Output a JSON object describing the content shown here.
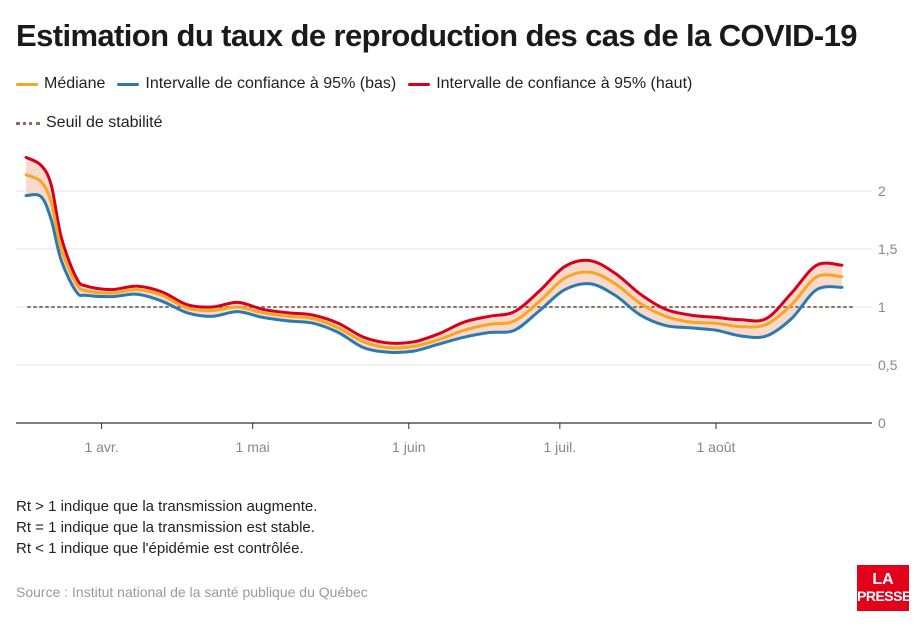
{
  "title": "Estimation du taux de reproduction des cas de la COVID-19",
  "legend": {
    "median": "Médiane",
    "low": "Intervalle de confiance à 95% (bas)",
    "high": "Intervalle de confiance à 95% (haut)",
    "threshold": "Seuil de stabilité"
  },
  "colors": {
    "median": "#f5a623",
    "low": "#2a7ab0",
    "high": "#d6001c",
    "band": "#f9d5c8",
    "threshold": "#8a6f63",
    "axis": "#888888"
  },
  "notes": [
    "Rt > 1 indique que la transmission augmente.",
    "Rt = 1 indique que la transmission est stable.",
    "Rt < 1 indique que l'épidémie est contrôlée."
  ],
  "source": "Source : Institut national de la santé publique du Québec",
  "logo": [
    "LA",
    "PRESSE"
  ],
  "chart_data": {
    "type": "line",
    "x_ticks": [
      {
        "day": 17,
        "label": "1 avr."
      },
      {
        "day": 47,
        "label": "1 mai"
      },
      {
        "day": 78,
        "label": "1 juin"
      },
      {
        "day": 108,
        "label": "1 juil."
      },
      {
        "day": 139,
        "label": "1 août"
      }
    ],
    "y_ticks": [
      {
        "value": 0,
        "label": "0"
      },
      {
        "value": 0.5,
        "label": "0,5"
      },
      {
        "value": 1,
        "label": "1"
      },
      {
        "value": 1.5,
        "label": "1,5"
      },
      {
        "value": 2,
        "label": "2"
      }
    ],
    "xlim": [
      0,
      168
    ],
    "ylim": [
      0,
      2
    ],
    "threshold": 1,
    "series": [
      {
        "name": "Médiane",
        "key": "median",
        "x": [
          2,
          5,
          7,
          9,
          12,
          14,
          19,
          24,
          29,
          34,
          39,
          44,
          49,
          54,
          59,
          64,
          69,
          74,
          79,
          84,
          89,
          94,
          99,
          104,
          109,
          114,
          119,
          124,
          129,
          134,
          139,
          144,
          149,
          154,
          159,
          164
        ],
        "values": [
          2.14,
          2.08,
          1.9,
          1.5,
          1.2,
          1.14,
          1.12,
          1.15,
          1.1,
          0.99,
          0.97,
          1.0,
          0.95,
          0.92,
          0.9,
          0.82,
          0.7,
          0.65,
          0.66,
          0.72,
          0.8,
          0.85,
          0.88,
          1.05,
          1.25,
          1.3,
          1.2,
          1.03,
          0.92,
          0.87,
          0.86,
          0.83,
          0.85,
          1.02,
          1.26,
          1.26
        ]
      },
      {
        "name": "Intervalle de confiance à 95% (bas)",
        "key": "low",
        "x": [
          2,
          5,
          7,
          9,
          12,
          14,
          19,
          24,
          29,
          34,
          39,
          44,
          49,
          54,
          59,
          64,
          69,
          74,
          79,
          84,
          89,
          94,
          99,
          104,
          109,
          114,
          119,
          124,
          129,
          134,
          139,
          144,
          149,
          154,
          159,
          164
        ],
        "values": [
          1.96,
          1.95,
          1.75,
          1.4,
          1.13,
          1.1,
          1.09,
          1.11,
          1.05,
          0.95,
          0.92,
          0.96,
          0.91,
          0.88,
          0.86,
          0.78,
          0.65,
          0.61,
          0.62,
          0.68,
          0.74,
          0.78,
          0.8,
          0.97,
          1.15,
          1.2,
          1.1,
          0.93,
          0.84,
          0.82,
          0.8,
          0.75,
          0.75,
          0.9,
          1.15,
          1.17
        ]
      },
      {
        "name": "Intervalle de confiance à 95% (haut)",
        "key": "high",
        "x": [
          2,
          5,
          7,
          9,
          12,
          14,
          19,
          24,
          29,
          34,
          39,
          44,
          49,
          54,
          59,
          64,
          69,
          74,
          79,
          84,
          89,
          94,
          99,
          104,
          109,
          114,
          119,
          124,
          129,
          134,
          139,
          144,
          149,
          154,
          159,
          164
        ],
        "values": [
          2.29,
          2.22,
          2.05,
          1.6,
          1.25,
          1.18,
          1.15,
          1.18,
          1.13,
          1.02,
          1.0,
          1.04,
          0.98,
          0.95,
          0.93,
          0.86,
          0.74,
          0.69,
          0.7,
          0.77,
          0.87,
          0.92,
          0.96,
          1.14,
          1.35,
          1.4,
          1.29,
          1.11,
          0.98,
          0.93,
          0.91,
          0.89,
          0.9,
          1.12,
          1.36,
          1.36
        ]
      }
    ]
  }
}
